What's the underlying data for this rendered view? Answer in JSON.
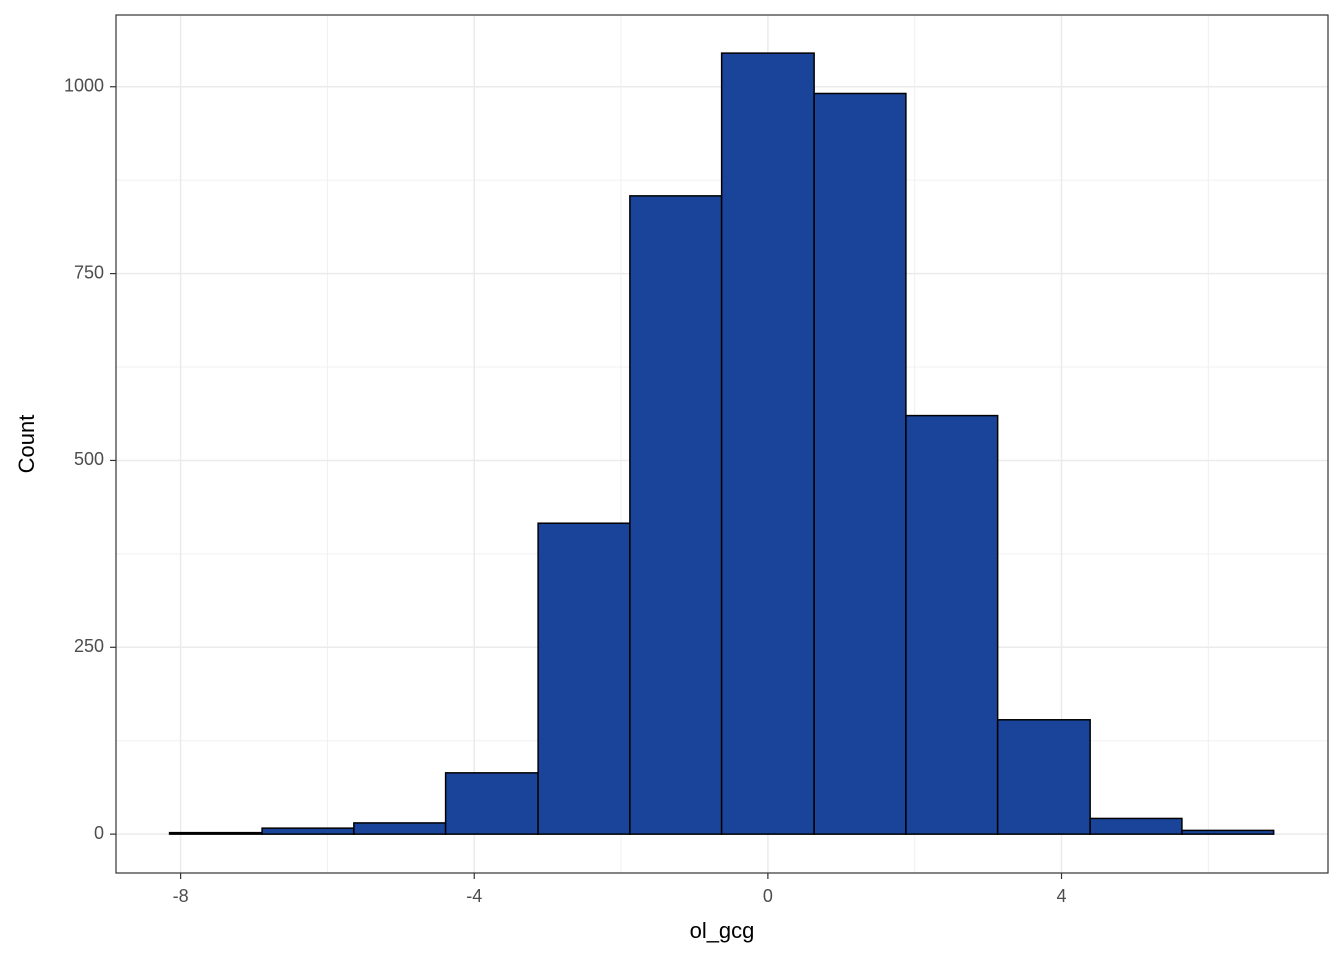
{
  "chart_data": {
    "type": "histogram",
    "x_label": "ol_gcg",
    "y_label": "Count",
    "bins": [
      -8.15,
      -6.89,
      -5.64,
      -4.39,
      -3.13,
      -1.88,
      -0.63,
      0.63,
      1.88,
      3.13,
      4.39,
      5.64,
      6.89
    ],
    "values": [
      2,
      8,
      15,
      82,
      416,
      854,
      1045,
      991,
      560,
      153,
      21,
      5
    ],
    "color": "#1a449a",
    "edge_color": "#000000",
    "xlim": [
      -8.88,
      7.63
    ],
    "ylim": [
      -52,
      1096
    ],
    "xticks": [
      -8,
      -4,
      0,
      4
    ],
    "yticks": [
      0,
      250,
      500,
      750,
      1000
    ],
    "x_minor_grid": [
      -6,
      -2,
      2,
      6
    ],
    "y_minor_grid": [
      125,
      375,
      625,
      875
    ],
    "grid": true
  }
}
